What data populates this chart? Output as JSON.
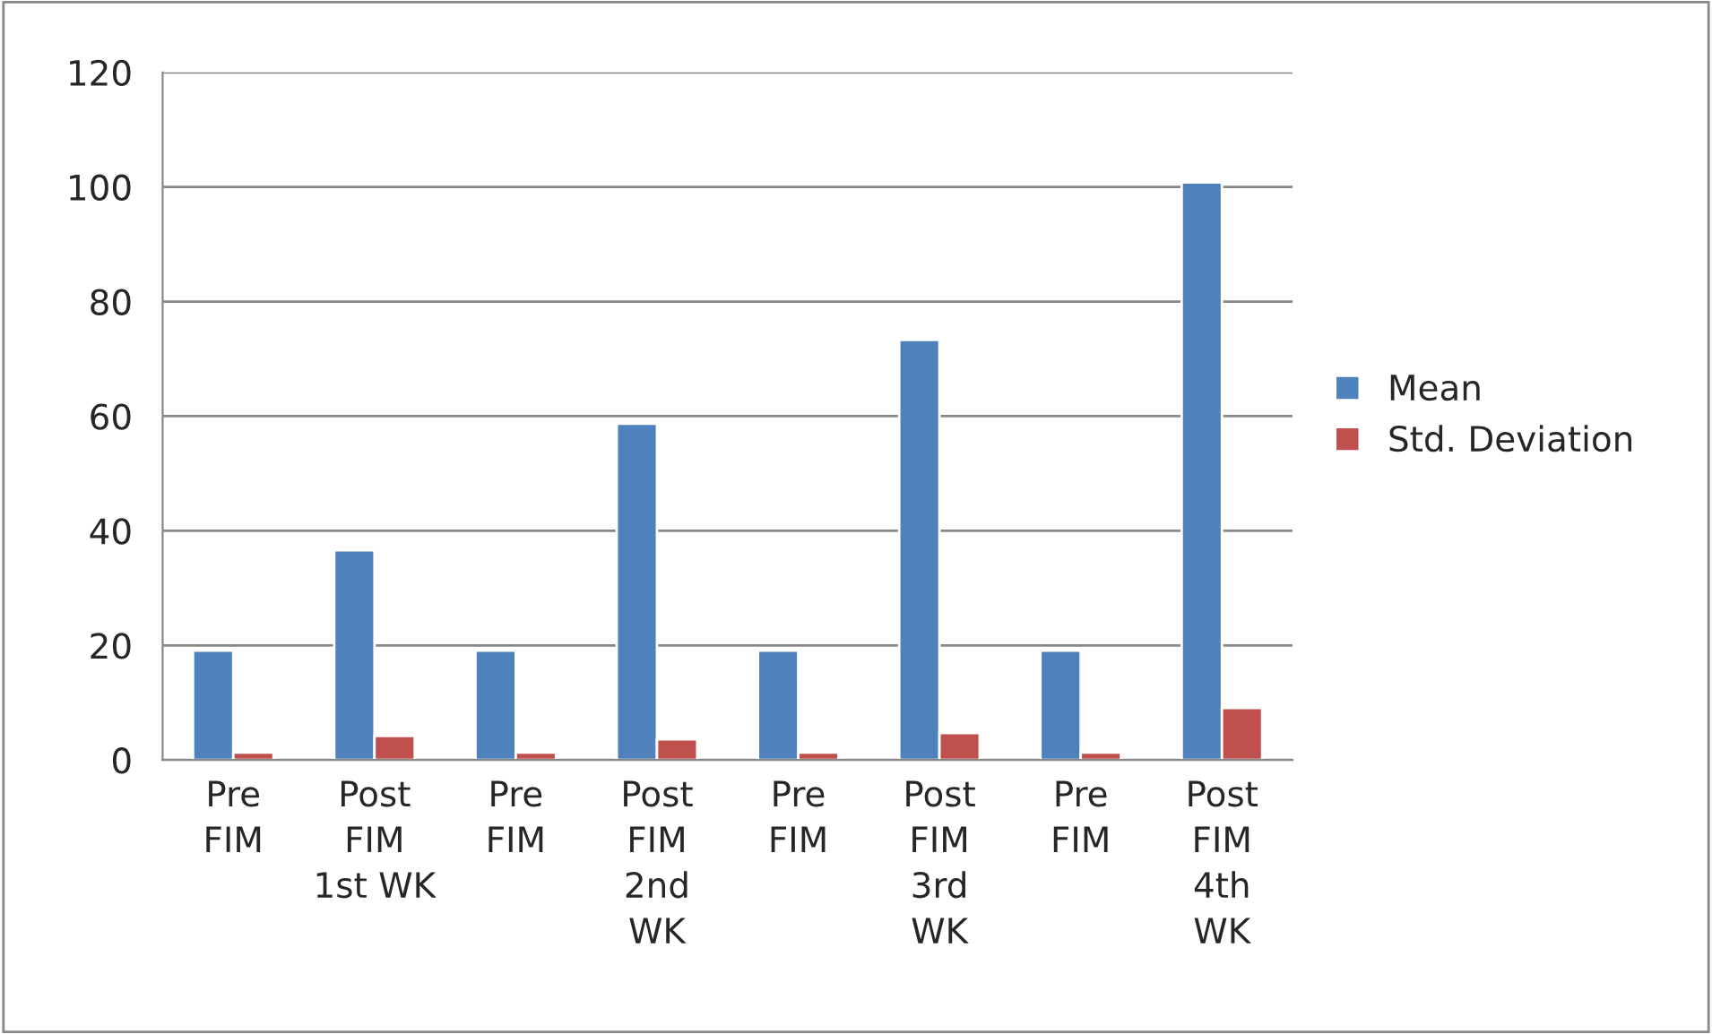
{
  "chart_data": {
    "type": "bar",
    "categories": [
      "Pre\nFIM",
      "Post\nFIM\n1st WK",
      "Pre\nFIM",
      "Post\nFIM\n2nd\nWK",
      "Pre\nFIM",
      "Post\nFIM\n3rd\nWK",
      "Pre\nFIM",
      "Post\nFIM\n4th\nWK"
    ],
    "series": [
      {
        "name": "Mean",
        "color": "#4f81bd",
        "values": [
          19.1,
          36.6,
          19.1,
          58.7,
          19.1,
          73.3,
          19.1,
          100.8
        ]
      },
      {
        "name": "Std. Deviation",
        "color": "#c0504d",
        "values": [
          1.3,
          4.2,
          1.3,
          3.6,
          1.3,
          4.7,
          1.3,
          9.1
        ]
      }
    ],
    "ylim": [
      0,
      120
    ],
    "yticks": [
      0,
      20,
      40,
      60,
      80,
      100,
      120
    ],
    "grid": "y",
    "legend": "right"
  }
}
